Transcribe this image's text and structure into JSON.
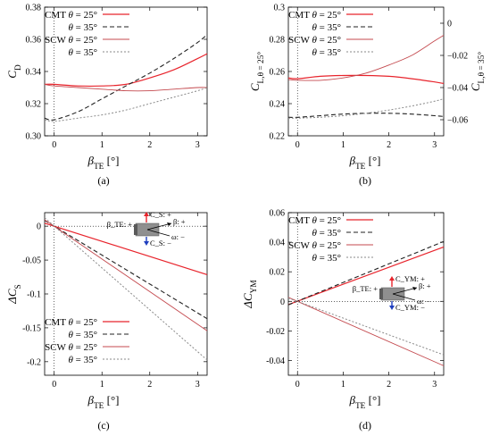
{
  "chart_data": [
    {
      "type": "line",
      "caption": "(a)",
      "xlabel": "β_TE [°]",
      "ylabel": "C_D",
      "xlim": [
        -0.2,
        3.2
      ],
      "ylim": [
        0.3,
        0.38
      ],
      "xticks": [
        0,
        1,
        2,
        3
      ],
      "yticks": [
        0.3,
        0.32,
        0.34,
        0.36,
        0.38
      ],
      "ytick_labels": [
        "0.30",
        "0.32",
        "0.34",
        "0.36",
        "0.38"
      ],
      "legend": [
        "CMT θ = 25°",
        "θ = 35°",
        "SCW θ = 25°",
        "θ = 35°"
      ],
      "legend_position": "top-left",
      "series": [
        {
          "name": "CMT θ = 25°",
          "x": [
            -0.2,
            0,
            0.5,
            1,
            1.5,
            2,
            2.5,
            3,
            3.2
          ],
          "values": [
            0.332,
            0.332,
            0.331,
            0.331,
            0.332,
            0.336,
            0.341,
            0.348,
            0.351
          ]
        },
        {
          "name": "CMT θ = 35°",
          "x": [
            -0.2,
            0,
            0.5,
            1,
            1.5,
            2,
            2.5,
            3,
            3.2
          ],
          "values": [
            0.311,
            0.31,
            0.315,
            0.323,
            0.331,
            0.339,
            0.348,
            0.358,
            0.363
          ]
        },
        {
          "name": "SCW θ = 25°",
          "x": [
            -0.2,
            0,
            0.5,
            1,
            1.5,
            2,
            2.5,
            3,
            3.2
          ],
          "values": [
            0.332,
            0.331,
            0.33,
            0.329,
            0.328,
            0.328,
            0.329,
            0.33,
            0.33
          ]
        },
        {
          "name": "SCW θ = 35°",
          "x": [
            -0.2,
            0,
            0.5,
            1,
            1.5,
            2,
            2.5,
            3,
            3.2
          ],
          "values": [
            0.31,
            0.309,
            0.311,
            0.313,
            0.316,
            0.32,
            0.324,
            0.328,
            0.33
          ]
        }
      ]
    },
    {
      "type": "line",
      "caption": "(b)",
      "xlabel": "β_TE [°]",
      "ylabel": "C_L,θ=25°",
      "ylabel_right": "C_L,θ=35°",
      "xlim": [
        -0.2,
        3.2
      ],
      "ylim": [
        0.22,
        0.3
      ],
      "ylim_right": [
        -0.07,
        0.01
      ],
      "xticks": [
        0,
        1,
        2,
        3
      ],
      "yticks": [
        0.22,
        0.24,
        0.26,
        0.28,
        0.3
      ],
      "ytick_labels": [
        "0.22",
        "0.24",
        "0.26",
        "0.28",
        "0.3"
      ],
      "yticks_right": [
        -0.06,
        -0.04,
        -0.02,
        0
      ],
      "ytick_labels_right": [
        "−0.06",
        "−0.04",
        "−0.02",
        "0"
      ],
      "legend": [
        "CMT θ = 25°",
        "θ = 35°",
        "SCW θ = 25°",
        "θ = 35°"
      ],
      "legend_position": "top-left",
      "series": [
        {
          "name": "CMT θ = 25°",
          "axis": "left",
          "x": [
            -0.2,
            0,
            0.5,
            1,
            1.5,
            2,
            2.5,
            3,
            3.2
          ],
          "values": [
            0.256,
            0.2555,
            0.257,
            0.2575,
            0.2575,
            0.257,
            0.2555,
            0.2535,
            0.2525
          ]
        },
        {
          "name": "CMT θ = 35°",
          "axis": "right",
          "x": [
            -0.2,
            0,
            0.5,
            1,
            1.5,
            2,
            2.5,
            3,
            3.2
          ],
          "values": [
            -0.0585,
            -0.0585,
            -0.0575,
            -0.0565,
            -0.056,
            -0.056,
            -0.0565,
            -0.0575,
            -0.058
          ]
        },
        {
          "name": "SCW θ = 25°",
          "axis": "left",
          "x": [
            -0.2,
            0,
            0.5,
            1,
            1.5,
            2,
            2.5,
            3,
            3.2
          ],
          "values": [
            0.255,
            0.2545,
            0.2545,
            0.256,
            0.259,
            0.264,
            0.27,
            0.279,
            0.2825
          ]
        },
        {
          "name": "SCW θ = 35°",
          "axis": "right",
          "x": [
            -0.2,
            0,
            0.5,
            1,
            1.5,
            2,
            2.5,
            3,
            3.2
          ],
          "values": [
            -0.059,
            -0.059,
            -0.0585,
            -0.0575,
            -0.056,
            -0.054,
            -0.0515,
            -0.0485,
            -0.047
          ]
        }
      ]
    },
    {
      "type": "line",
      "caption": "(c)",
      "xlabel": "β_TE [°]",
      "ylabel": "ΔC_S",
      "xlim": [
        -0.2,
        3.2
      ],
      "ylim": [
        -0.22,
        0.02
      ],
      "xticks": [
        0,
        1,
        2,
        3
      ],
      "yticks": [
        0,
        -0.05,
        -0.1,
        -0.15,
        -0.2
      ],
      "ytick_labels": [
        "0",
        "-0.05",
        "-0.1",
        "-0.15",
        "-0.2"
      ],
      "legend": [
        "CMT θ = 25°",
        "θ = 35°",
        "SCW θ = 25°",
        "θ = 35°"
      ],
      "legend_position": "bottom-left",
      "inset_labels": {
        "beta": "β_TE",
        "plus": "+",
        "minus": "−",
        "cs_plus": "C_S: +",
        "cs_minus": "C_S: −",
        "beta_plus": "β: +",
        "omega_minus": "ω: −"
      },
      "series": [
        {
          "name": "CMT θ = 25°",
          "x": [
            -0.2,
            3.2
          ],
          "values": [
            0.0045,
            -0.0715
          ]
        },
        {
          "name": "CMT θ = 35°",
          "x": [
            -0.2,
            3.2
          ],
          "values": [
            0.0085,
            -0.1365
          ]
        },
        {
          "name": "SCW θ = 25°",
          "x": [
            -0.2,
            3.2
          ],
          "values": [
            0.0095,
            -0.1545
          ]
        },
        {
          "name": "SCW θ = 35°",
          "x": [
            -0.2,
            3.2
          ],
          "values": [
            0.0125,
            -0.1975
          ]
        }
      ]
    },
    {
      "type": "line",
      "caption": "(d)",
      "xlabel": "β_TE [°]",
      "ylabel": "ΔC_YM",
      "xlim": [
        -0.2,
        3.2
      ],
      "ylim": [
        -0.05,
        0.06
      ],
      "xticks": [
        0,
        1,
        2,
        3
      ],
      "yticks": [
        0.06,
        0.04,
        0.02,
        0,
        -0.02,
        -0.04
      ],
      "ytick_labels": [
        "0.06",
        "0.04",
        "0.02",
        "0",
        "-0.02",
        "-0.04"
      ],
      "legend": [
        "CMT θ = 25°",
        "θ = 35°",
        "SCW θ = 25°",
        "θ = 35°"
      ],
      "legend_position": "top-left",
      "inset_labels": {
        "beta": "β_TE",
        "plus": "+",
        "minus": "−",
        "cym_plus": "C_YM: +",
        "cym_minus": "C_YM: −",
        "beta_plus": "β: +",
        "omega_minus": "ω: −"
      },
      "series": [
        {
          "name": "CMT θ = 25°",
          "x": [
            -0.2,
            3.2
          ],
          "values": [
            -0.0022,
            0.0368
          ]
        },
        {
          "name": "CMT θ = 35°",
          "x": [
            -0.2,
            3.2
          ],
          "values": [
            -0.0024,
            0.0405
          ]
        },
        {
          "name": "SCW θ = 25°",
          "x": [
            -0.2,
            3.2
          ],
          "values": [
            0.0027,
            -0.0436
          ]
        },
        {
          "name": "SCW θ = 35°",
          "x": [
            -0.2,
            3.2
          ],
          "values": [
            0.0022,
            -0.0362
          ]
        }
      ]
    }
  ],
  "styles": {
    "cmt25": {
      "color": "#e8242c",
      "dash": "none",
      "width": 1.2
    },
    "cmt35": {
      "color": "#222222",
      "dash": "5,3",
      "width": 1.1
    },
    "scw25": {
      "color": "#c44a4f",
      "dash": "none",
      "width": 0.9
    },
    "scw35": {
      "color": "#8a8a8a",
      "dash": "2,2",
      "width": 1.0
    }
  }
}
